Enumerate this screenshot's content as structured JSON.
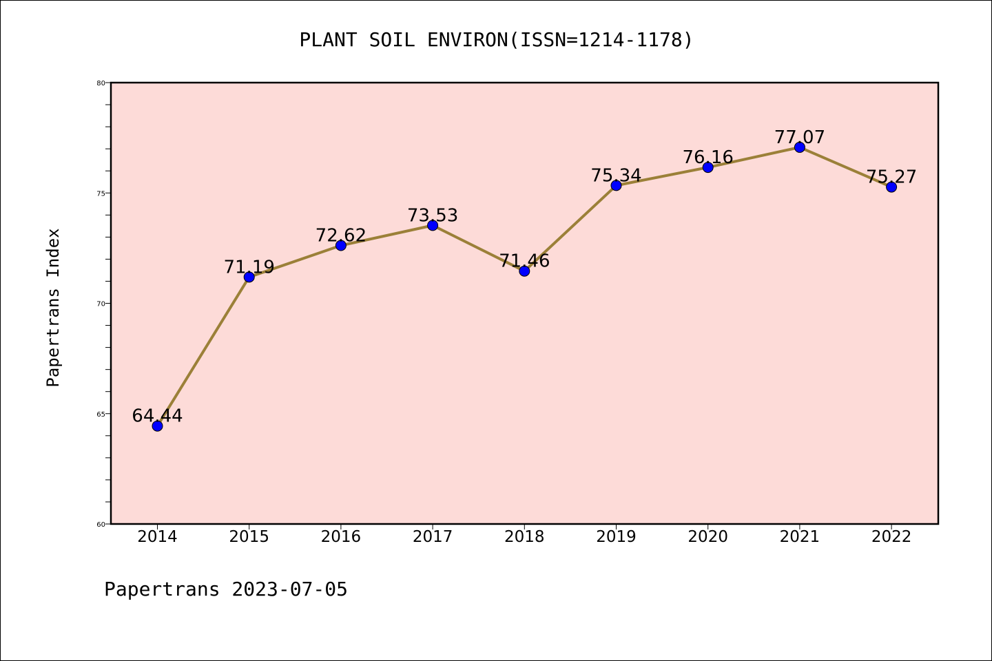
{
  "chart_data": {
    "type": "line",
    "title": "PLANT SOIL ENVIRON(ISSN=1214-1178)",
    "xlabel": "",
    "ylabel": "Papertrans Index",
    "footer": "Papertrans 2023-07-05",
    "categories": [
      "2014",
      "2015",
      "2016",
      "2017",
      "2018",
      "2019",
      "2020",
      "2021",
      "2022"
    ],
    "series": [
      {
        "values": [
          64.44,
          71.19,
          72.62,
          73.53,
          71.46,
          75.34,
          76.16,
          77.07,
          75.27
        ],
        "labels": [
          "64.44",
          "71.19",
          "72.62",
          "73.53",
          "71.46",
          "75.34",
          "76.16",
          "77.07",
          "75.27"
        ]
      }
    ],
    "ylim": [
      60,
      80
    ],
    "yticks": [
      "60",
      "65",
      "70",
      "75",
      "80"
    ],
    "grid": false,
    "colors": {
      "plot_background": "#fddbd8",
      "line": "#9b8038",
      "marker": "#0000ff",
      "axis": "#000000"
    }
  }
}
